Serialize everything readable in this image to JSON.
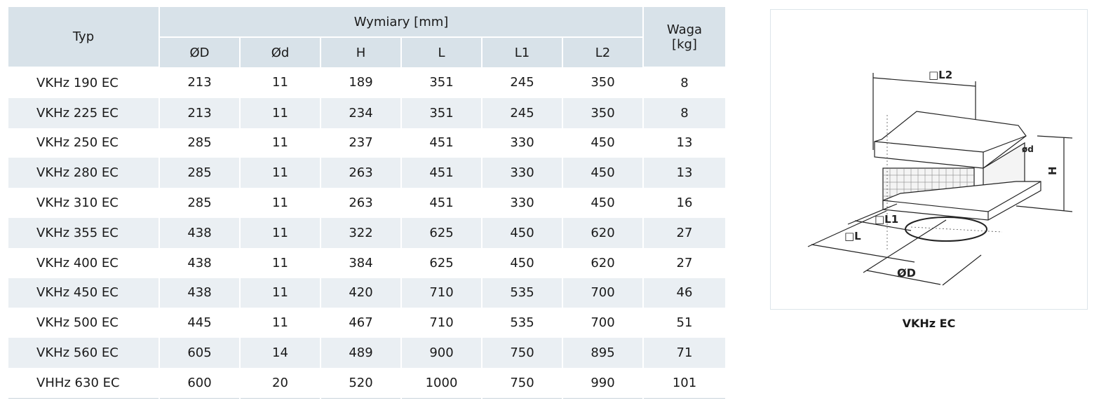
{
  "table": {
    "header_typ": "Typ",
    "header_dims": "Wymiary [mm]",
    "header_weight_line1": "Waga",
    "header_weight_line2": "[kg]",
    "dim_columns": [
      "ØD",
      "Ød",
      "H",
      "L",
      "L1",
      "L2"
    ],
    "rows": [
      {
        "typ": "VKHz 190 EC",
        "vals": [
          "213",
          "11",
          "189",
          "351",
          "245",
          "350"
        ],
        "waga": "8"
      },
      {
        "typ": "VKHz 225 EC",
        "vals": [
          "213",
          "11",
          "234",
          "351",
          "245",
          "350"
        ],
        "waga": "8"
      },
      {
        "typ": "VKHz 250 EC",
        "vals": [
          "285",
          "11",
          "237",
          "451",
          "330",
          "450"
        ],
        "waga": "13"
      },
      {
        "typ": "VKHz 280 EC",
        "vals": [
          "285",
          "11",
          "263",
          "451",
          "330",
          "450"
        ],
        "waga": "13"
      },
      {
        "typ": "VKHz 310 EC",
        "vals": [
          "285",
          "11",
          "263",
          "451",
          "330",
          "450"
        ],
        "waga": "16"
      },
      {
        "typ": "VKHz 355 EC",
        "vals": [
          "438",
          "11",
          "322",
          "625",
          "450",
          "620"
        ],
        "waga": "27"
      },
      {
        "typ": "VKHz 400 EC",
        "vals": [
          "438",
          "11",
          "384",
          "625",
          "450",
          "620"
        ],
        "waga": "27"
      },
      {
        "typ": "VKHz 450 EC",
        "vals": [
          "438",
          "11",
          "420",
          "710",
          "535",
          "700"
        ],
        "waga": "46"
      },
      {
        "typ": "VKHz 500 EC",
        "vals": [
          "445",
          "11",
          "467",
          "710",
          "535",
          "700"
        ],
        "waga": "51"
      },
      {
        "typ": "VKHz 560 EC",
        "vals": [
          "605",
          "14",
          "489",
          "900",
          "750",
          "895"
        ],
        "waga": "71"
      },
      {
        "typ": "VHHz 630 EC",
        "vals": [
          "600",
          "20",
          "520",
          "1000",
          "750",
          "990"
        ],
        "waga": "101"
      }
    ]
  },
  "figure": {
    "labels": {
      "L2": "□L2",
      "L1": "□L1",
      "L": "□L",
      "D": "ØD",
      "d": "ød",
      "H": "H"
    },
    "caption": "VKHz EC"
  }
}
